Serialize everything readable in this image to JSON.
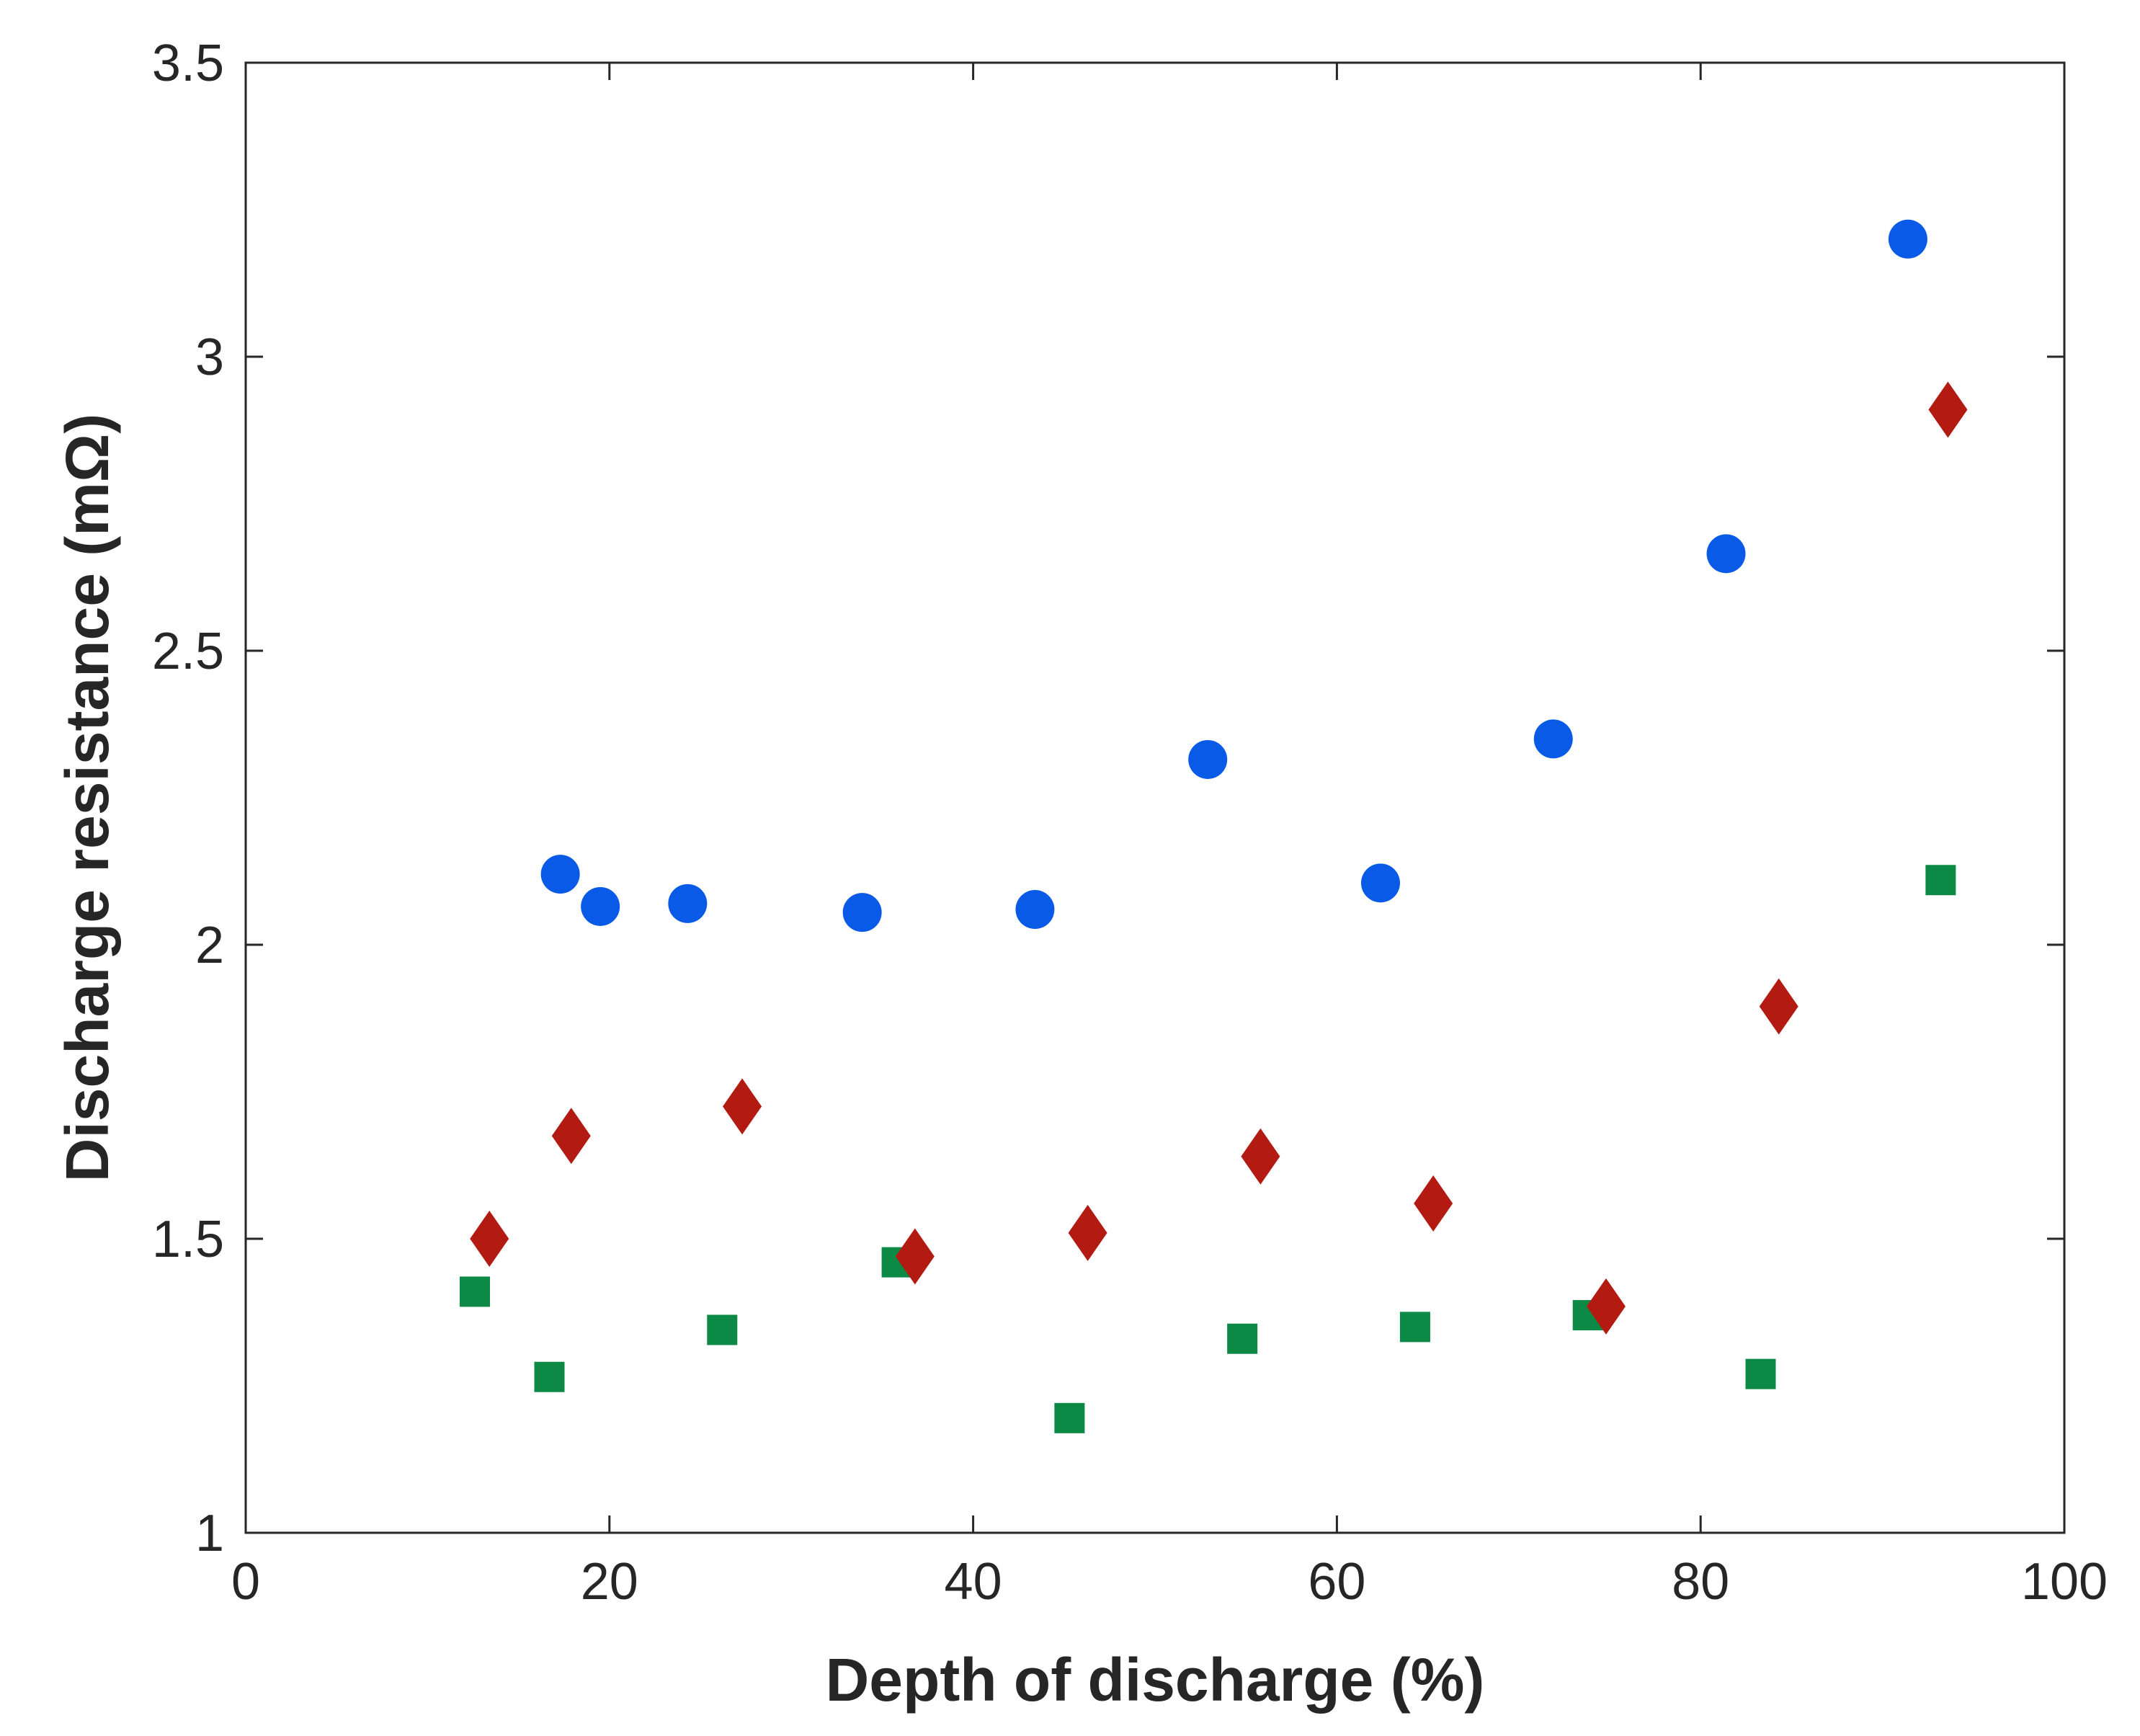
{
  "chart_data": {
    "type": "scatter",
    "title": "",
    "xlabel": "Depth of discharge (%)",
    "ylabel": "Discharge resistance (mΩ)",
    "xlim": [
      0,
      100
    ],
    "ylim": [
      1,
      3.5
    ],
    "xticks": [
      0,
      20,
      40,
      60,
      80,
      100
    ],
    "xtick_labels": [
      "0",
      "20",
      "40",
      "60",
      "80",
      "100"
    ],
    "yticks": [
      1,
      1.5,
      2,
      2.5,
      3,
      3.5
    ],
    "ytick_labels": [
      "1",
      "1.5",
      "2",
      "2.5",
      "3",
      "3.5"
    ],
    "grid": false,
    "box": true,
    "series": [
      {
        "name": "blue circles",
        "marker": "circle",
        "color": "#0a5ae8",
        "x": [
          17.3,
          19.5,
          24.3,
          33.9,
          43.4,
          52.9,
          62.4,
          71.9,
          81.4,
          91.4
        ],
        "y": [
          2.12,
          2.065,
          2.07,
          2.055,
          2.06,
          2.315,
          2.105,
          2.35,
          2.665,
          3.2
        ]
      },
      {
        "name": "red diamonds",
        "marker": "diamond",
        "color": "#b31b12",
        "x": [
          13.4,
          17.9,
          27.3,
          36.8,
          46.3,
          55.8,
          65.3,
          74.8,
          84.3,
          93.6
        ],
        "y": [
          1.5,
          1.675,
          1.725,
          1.47,
          1.51,
          1.64,
          1.56,
          1.385,
          1.895,
          2.91
        ]
      },
      {
        "name": "green squares",
        "marker": "square",
        "color": "#0c8a45",
        "x": [
          12.6,
          16.7,
          26.2,
          35.8,
          45.3,
          54.8,
          64.3,
          73.8,
          83.3,
          93.2
        ],
        "y": [
          1.41,
          1.265,
          1.345,
          1.46,
          1.195,
          1.33,
          1.35,
          1.37,
          1.27,
          2.11
        ]
      }
    ]
  }
}
